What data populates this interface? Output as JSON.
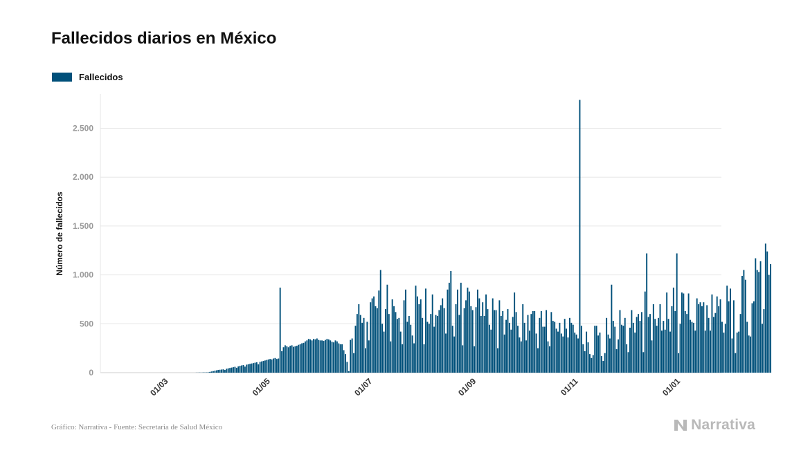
{
  "header": {
    "title": "Fallecidos diarios en México"
  },
  "footer": {
    "source": "Gráfico: Narrativa - Fuente: Secretaria de Salud México"
  },
  "brand": {
    "name": "Narrativa",
    "color": "#b9b9b9",
    "icon": "narrativa-logo-icon"
  },
  "chart_data": {
    "type": "bar",
    "title": "Fallecidos diarios en México",
    "xlabel": "",
    "ylabel": "Número de fallecidos",
    "legend": {
      "position": "top-left",
      "entries": [
        "Fallecidos"
      ]
    },
    "series": [
      {
        "name": "Fallecidos",
        "color": "#00507a"
      }
    ],
    "x_range": [
      "2020-01-22",
      "2021-01-27"
    ],
    "x_ticks": [
      {
        "date": "2020-03-01",
        "label": "01/03"
      },
      {
        "date": "2020-05-01",
        "label": "01/05"
      },
      {
        "date": "2020-07-01",
        "label": "01/07"
      },
      {
        "date": "2020-09-01",
        "label": "01/09"
      },
      {
        "date": "2020-11-01",
        "label": "01/11"
      },
      {
        "date": "2021-01-01",
        "label": "01/01"
      }
    ],
    "ylim": [
      0,
      2850
    ],
    "y_ticks": [
      {
        "value": 0,
        "label": "0"
      },
      {
        "value": 500,
        "label": "500"
      },
      {
        "value": 1000,
        "label": "1.000"
      },
      {
        "value": 1500,
        "label": "1.500"
      },
      {
        "value": 2000,
        "label": "2.000"
      },
      {
        "value": 2500,
        "label": "2.500"
      }
    ],
    "grid": true,
    "start_date": "2020-03-19",
    "values": [
      1,
      1,
      2,
      1,
      3,
      2,
      3,
      4,
      8,
      12,
      16,
      20,
      24,
      28,
      30,
      32,
      34,
      28,
      40,
      44,
      48,
      52,
      56,
      60,
      50,
      64,
      70,
      74,
      78,
      62,
      82,
      86,
      90,
      94,
      98,
      102,
      106,
      85,
      110,
      115,
      120,
      125,
      130,
      135,
      140,
      135,
      145,
      150,
      140,
      145,
      870,
      220,
      260,
      280,
      270,
      260,
      275,
      280,
      265,
      270,
      275,
      285,
      290,
      300,
      305,
      320,
      330,
      345,
      340,
      330,
      345,
      340,
      350,
      335,
      330,
      330,
      325,
      335,
      345,
      340,
      330,
      315,
      310,
      330,
      320,
      300,
      290,
      290,
      230,
      190,
      110,
      15,
      335,
      350,
      200,
      480,
      600,
      700,
      590,
      510,
      560,
      250,
      520,
      330,
      720,
      760,
      780,
      680,
      660,
      840,
      1050,
      500,
      420,
      650,
      900,
      600,
      320,
      750,
      680,
      620,
      550,
      560,
      420,
      290,
      740,
      850,
      520,
      580,
      490,
      380,
      300,
      890,
      780,
      700,
      750,
      560,
      290,
      860,
      520,
      500,
      600,
      800,
      470,
      590,
      580,
      640,
      690,
      760,
      660,
      400,
      850,
      920,
      1040,
      480,
      370,
      700,
      850,
      590,
      920,
      280,
      660,
      740,
      870,
      830,
      680,
      640,
      270,
      670,
      850,
      760,
      580,
      720,
      580,
      800,
      650,
      490,
      440,
      760,
      640,
      640,
      250,
      740,
      580,
      630,
      390,
      540,
      650,
      510,
      440,
      570,
      820,
      620,
      480,
      360,
      320,
      700,
      510,
      330,
      590,
      430,
      600,
      630,
      630,
      400,
      250,
      560,
      630,
      470,
      470,
      640,
      320,
      270,
      620,
      530,
      520,
      450,
      420,
      510,
      400,
      370,
      550,
      450,
      360,
      560,
      510,
      490,
      410,
      390,
      350,
      2790,
      480,
      290,
      220,
      420,
      310,
      190,
      150,
      180,
      480,
      480,
      380,
      410,
      170,
      120,
      200,
      560,
      390,
      350,
      900,
      530,
      470,
      240,
      340,
      640,
      490,
      480,
      560,
      290,
      210,
      460,
      640,
      510,
      410,
      570,
      600,
      530,
      620,
      210,
      830,
      1220,
      570,
      600,
      330,
      700,
      550,
      480,
      560,
      700,
      430,
      530,
      440,
      820,
      550,
      420,
      680,
      870,
      630,
      1220,
      200,
      500,
      820,
      810,
      630,
      600,
      810,
      540,
      520,
      510,
      430,
      760,
      700,
      720,
      680,
      720,
      430,
      690,
      560,
      430,
      800,
      570,
      610,
      780,
      680,
      750,
      520,
      410,
      500,
      890,
      730,
      860,
      350,
      740,
      200,
      410,
      420,
      600,
      990,
      1050,
      950,
      520,
      380,
      370,
      710,
      730,
      1170,
      1050,
      1030,
      1140,
      500,
      650,
      1320,
      1240,
      1000,
      1110
    ]
  }
}
